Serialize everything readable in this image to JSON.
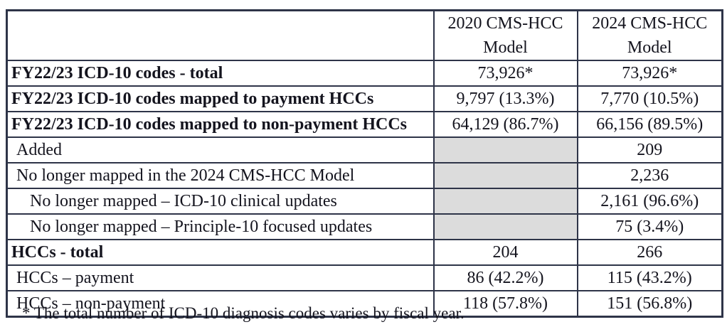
{
  "table": {
    "columns": {
      "label": "",
      "model_2020": "2020 CMS-HCC Model",
      "model_2024": "2024 CMS-HCC Model"
    },
    "rows": [
      {
        "label": "FY22/23 ICD-10 codes - total",
        "bold": true,
        "indent": 0,
        "value_2020": "73,926*",
        "value_2024": "73,926*",
        "shaded_2020": false
      },
      {
        "label": "FY22/23 ICD-10 codes mapped to payment HCCs",
        "bold": true,
        "indent": 0,
        "value_2020": "9,797 (13.3%)",
        "value_2024": "7,770 (10.5%)",
        "shaded_2020": false
      },
      {
        "label": "FY22/23 ICD-10 codes mapped to non-payment HCCs",
        "bold": true,
        "indent": 0,
        "value_2020": "64,129 (86.7%)",
        "value_2024": "66,156 (89.5%)",
        "shaded_2020": false
      },
      {
        "label": "Added",
        "bold": false,
        "indent": 1,
        "value_2020": "",
        "value_2024": "209",
        "shaded_2020": true
      },
      {
        "label": "No longer mapped in the 2024 CMS-HCC Model",
        "bold": false,
        "indent": 1,
        "value_2020": "",
        "value_2024": "2,236",
        "shaded_2020": true
      },
      {
        "label": "No longer mapped – ICD-10 clinical updates",
        "bold": false,
        "indent": 2,
        "value_2020": "",
        "value_2024": "2,161 (96.6%)",
        "shaded_2020": true
      },
      {
        "label": "No longer mapped – Principle-10 focused updates",
        "bold": false,
        "indent": 2,
        "value_2020": "",
        "value_2024": "75 (3.4%)",
        "shaded_2020": true
      },
      {
        "label": "HCCs - total",
        "bold": true,
        "indent": 0,
        "value_2020": "204",
        "value_2024": "266",
        "shaded_2020": false
      },
      {
        "label": "HCCs – payment",
        "bold": false,
        "indent": 1,
        "value_2020": "86 (42.2%)",
        "value_2024": "115 (43.2%)",
        "shaded_2020": false
      },
      {
        "label": "HCCs – non-payment",
        "bold": false,
        "indent": 1,
        "value_2020": "118 (57.8%)",
        "value_2024": "151 (56.8%)",
        "shaded_2020": false
      }
    ]
  },
  "footnote": "* The total number of ICD-10 diagnosis codes varies by fiscal year.",
  "colors": {
    "border": "#2e3448",
    "text": "#14141e",
    "shaded_cell": "#dcdcdc"
  }
}
